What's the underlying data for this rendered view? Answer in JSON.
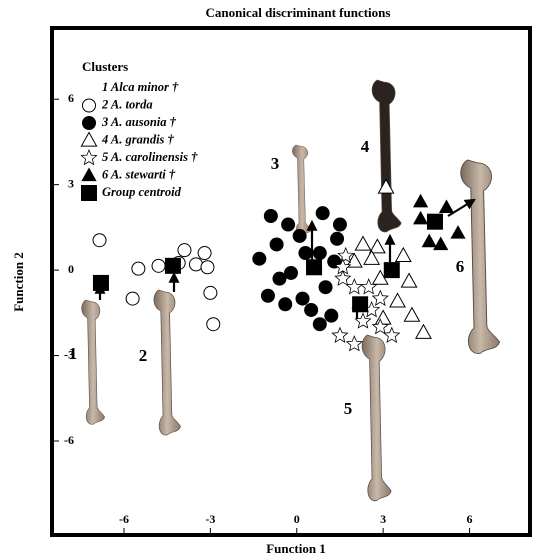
{
  "chart_data": {
    "type": "scatter",
    "title": "Canonical discriminant functions",
    "x_label": "Function 1",
    "y_label": "Function 2",
    "legend_title": "Clusters",
    "bone_labels": [
      "1",
      "2",
      "3",
      "4",
      "5",
      "6"
    ],
    "xlim": [
      -8.5,
      8.1
    ],
    "ylim": [
      -9.3,
      8.5
    ],
    "xticks": [
      -6,
      -3,
      0,
      3,
      6
    ],
    "yticks": [
      -6,
      -3,
      0,
      3,
      6
    ],
    "series": [
      {
        "name": "1 Alca minor †",
        "marker": "none",
        "color": "#000",
        "x": [],
        "y": []
      },
      {
        "name": "2 A. torda",
        "marker": "circle-open",
        "color": "#000",
        "x": [
          -6.85,
          -5.7,
          -5.5,
          -4.8,
          -4.1,
          -3.9,
          -3.5,
          -3.2,
          -3.1,
          -3.0,
          -2.9
        ],
        "y": [
          1.05,
          -1.0,
          0.05,
          0.15,
          0.25,
          0.7,
          0.2,
          0.6,
          0.1,
          -0.8,
          -1.9
        ]
      },
      {
        "name": "3 A. ausonia †",
        "marker": "circle-filled",
        "color": "#000",
        "x": [
          -1.3,
          -0.9,
          -0.3,
          0.1,
          -0.7,
          -0.2,
          0.3,
          -1.0,
          -0.6,
          0.2,
          0.5,
          0.8,
          1.2,
          1.0,
          1.3,
          1.4,
          1.5,
          0.9,
          -0.4,
          0.8
        ],
        "y": [
          0.4,
          1.9,
          1.6,
          1.2,
          0.9,
          -0.1,
          0.6,
          -0.9,
          -0.3,
          -1.0,
          -1.4,
          -1.9,
          -1.6,
          -0.6,
          0.3,
          1.1,
          1.6,
          2.0,
          -1.2,
          0.6
        ]
      },
      {
        "name": "4 A. grandis †",
        "marker": "triangle-open",
        "color": "#000",
        "x": [
          3.1,
          2.3,
          2.0,
          2.8,
          3.7,
          3.9,
          3.5,
          2.9,
          3.0,
          4.0,
          4.4,
          2.6
        ],
        "y": [
          2.9,
          0.9,
          0.3,
          0.8,
          0.5,
          -0.4,
          -1.1,
          -0.3,
          -1.7,
          -1.6,
          -2.2,
          0.4
        ]
      },
      {
        "name": "5 A. carolinensis †",
        "marker": "star-open",
        "color": "#000",
        "x": [
          1.7,
          1.6,
          2.0,
          2.5,
          2.9,
          2.3,
          2.9,
          2.6,
          1.5,
          2.0,
          3.3,
          1.6
        ],
        "y": [
          0.5,
          -0.3,
          -0.6,
          -0.6,
          -1.0,
          -1.8,
          -2.0,
          -1.4,
          -2.3,
          -2.6,
          -2.3,
          0.1
        ]
      },
      {
        "name": "6 A. stewarti †",
        "marker": "triangle-filled",
        "color": "#000",
        "x": [
          4.3,
          5.2,
          5.6,
          4.6,
          5.0,
          4.3
        ],
        "y": [
          2.4,
          2.2,
          1.3,
          1.0,
          0.9,
          1.8
        ]
      },
      {
        "name": "Group centroid",
        "marker": "square-filled",
        "color": "#000",
        "x": [
          -6.8,
          -4.3,
          0.6,
          3.3,
          2.2,
          4.8
        ],
        "y": [
          -0.45,
          0.15,
          0.1,
          0.0,
          -1.2,
          1.7
        ]
      }
    ]
  }
}
